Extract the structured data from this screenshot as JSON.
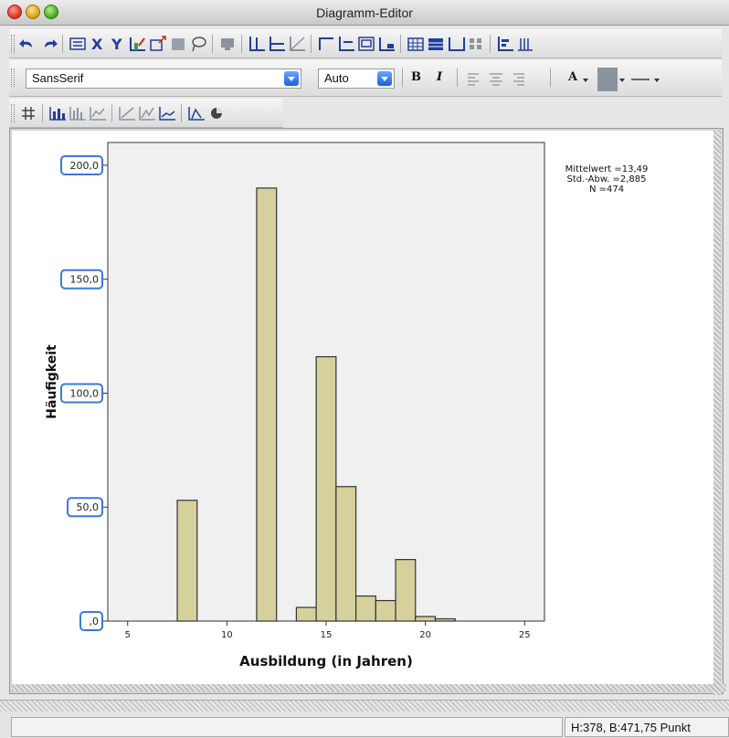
{
  "window": {
    "title": "Diagramm-Editor"
  },
  "toolbar2": {
    "font_value": "SansSerif",
    "size_value": "Auto",
    "bold_label": "B",
    "italic_label": "I",
    "text_color_label": "A"
  },
  "statusbar": {
    "dimensions": "H:378, B:471,75 Punkt"
  },
  "colors": {
    "bar_fill": "#d6d19c",
    "bar_stroke": "#333333",
    "plot_bg": "#f0f0f0",
    "selection": "#3a7ad8",
    "icon_blue": "#1f3f9a"
  },
  "chart_data": {
    "type": "bar",
    "title": "",
    "xlabel": "Ausbildung (in Jahren)",
    "ylabel": "Häufigkeit",
    "xlim": [
      4,
      26
    ],
    "ylim": [
      0,
      210
    ],
    "bin_width": 1,
    "x_ticks": [
      5,
      10,
      15,
      20,
      25
    ],
    "x_tick_labels": [
      "5",
      "10",
      "15",
      "20",
      "25"
    ],
    "y_ticks": [
      0,
      50,
      100,
      150,
      200
    ],
    "y_tick_labels": [
      ",0",
      "50,0",
      "100,0",
      "150,0",
      "200,0"
    ],
    "x": [
      8,
      12,
      14,
      15,
      16,
      17,
      18,
      19,
      20,
      21
    ],
    "values": [
      53,
      190,
      6,
      116,
      59,
      11,
      9,
      27,
      2,
      1
    ],
    "stats": [
      "Mittelwert =13,49",
      "Std.-Abw. =2,885",
      "N =474"
    ],
    "grid": false,
    "legend": "none"
  }
}
